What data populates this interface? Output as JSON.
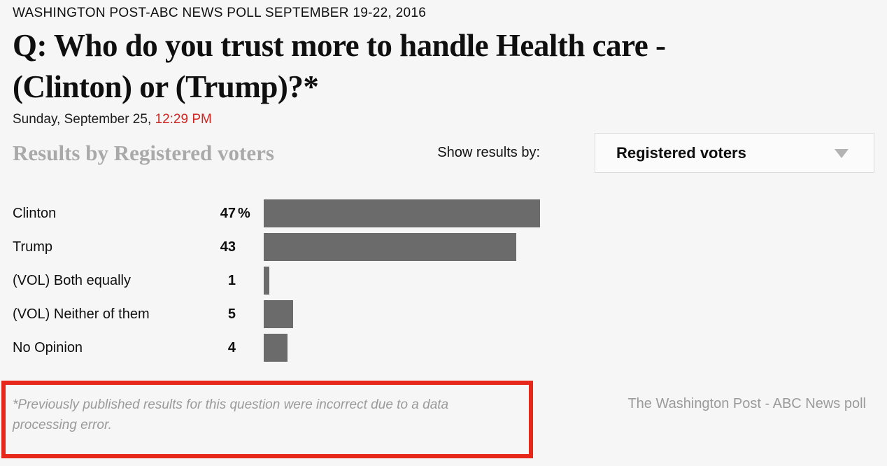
{
  "page": {
    "kicker": "WASHINGTON POST-ABC NEWS POLL SEPTEMBER 19-22, 2016",
    "question": "Q: Who do you trust more to handle Health care - (Clinton) or (Trump)?*",
    "date_prefix": "Sunday, September 25, ",
    "time": "12:29 PM"
  },
  "results_header": {
    "title": "Results by Registered voters",
    "filter_label": "Show results by:",
    "filter_selected": "Registered voters"
  },
  "chart_data": {
    "type": "bar",
    "orientation": "horizontal",
    "title": "Q: Who do you trust more to handle Health care - (Clinton) or (Trump)?*",
    "categories": [
      "Clinton",
      "Trump",
      "(VOL) Both equally",
      "(VOL) Neither of them",
      "No Opinion"
    ],
    "values": [
      47,
      43,
      1,
      5,
      4
    ],
    "value_labels": [
      "47",
      "43",
      "1",
      "5",
      "4"
    ],
    "value_suffixes": [
      "%",
      "",
      "",
      "",
      ""
    ],
    "unit": "percent",
    "xlim": [
      0,
      100
    ],
    "grid": false,
    "legend": false,
    "bar_color": "#6b6b6b"
  },
  "footnote": {
    "text": "*Previously published results for this question were incorrect due to a data processing error."
  },
  "credit": {
    "text": "The Washington Post - ABC News poll"
  },
  "colors": {
    "accent_red_time": "#d02621",
    "highlight_box_red": "#e8271b",
    "bar_gray": "#6b6b6b",
    "heading_gray": "#a9a9a9",
    "muted_text_gray": "#9a9a9a",
    "page_background": "#f6f6f6"
  }
}
